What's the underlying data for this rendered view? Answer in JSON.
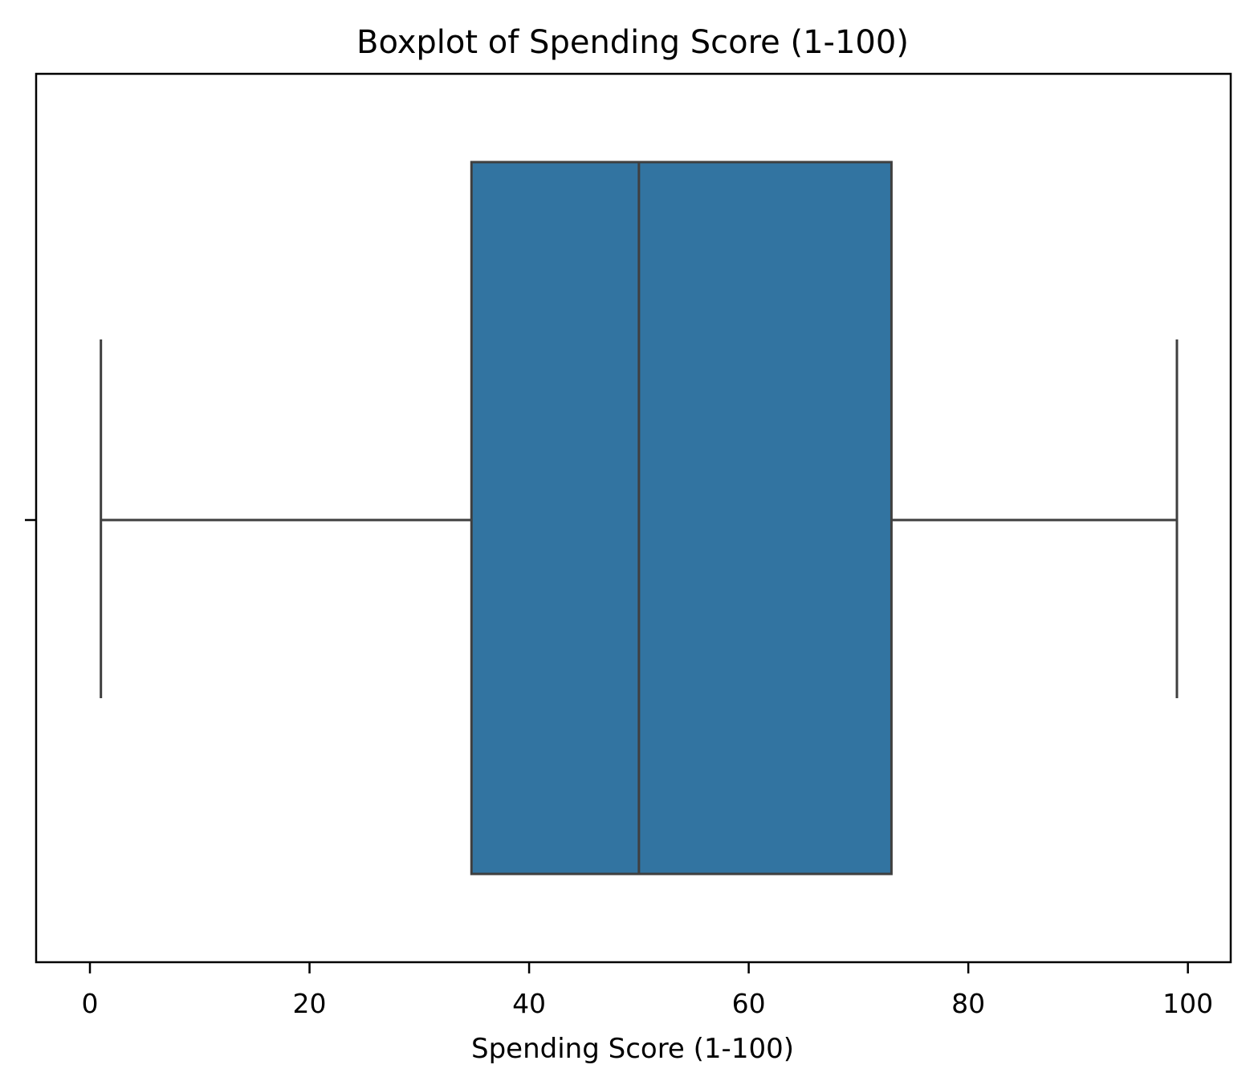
{
  "chart_data": {
    "type": "box",
    "title": "Boxplot of Spending Score (1-100)",
    "xlabel": "Spending Score (1-100)",
    "ylabel": "",
    "xlim": [
      -4.9,
      103.9
    ],
    "xticks": [
      0,
      20,
      40,
      60,
      80,
      100
    ],
    "grid": false,
    "box": {
      "whisker_low": 1,
      "q1": 34.75,
      "median": 50,
      "q3": 73,
      "whisker_high": 99,
      "fill_color": "#3274a1",
      "line_color": "#3f3f3f"
    }
  }
}
